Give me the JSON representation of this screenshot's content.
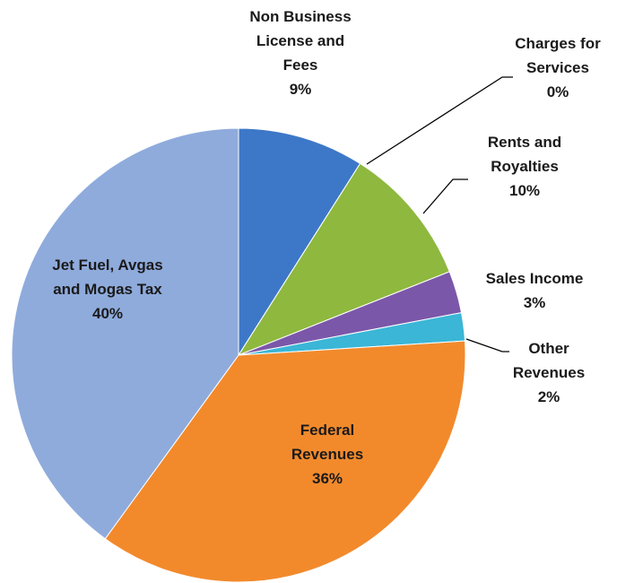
{
  "chart_data": {
    "type": "pie",
    "categories": [
      "Non Business License and Fees",
      "Charges for Services",
      "Rents and Royalties",
      "Sales Income",
      "Other Revenues",
      "Federal Revenues",
      "Jet Fuel, Avgas and Mogas Tax"
    ],
    "values": [
      9,
      0,
      10,
      3,
      2,
      36,
      40
    ],
    "value_labels": [
      "9%",
      "0%",
      "10%",
      "3%",
      "2%",
      "36%",
      "40%"
    ],
    "colors": [
      "#3d78c8",
      "#c0504d",
      "#8fb83f",
      "#7b57a9",
      "#3bb6d6",
      "#f28a2c",
      "#8fabdc"
    ]
  }
}
